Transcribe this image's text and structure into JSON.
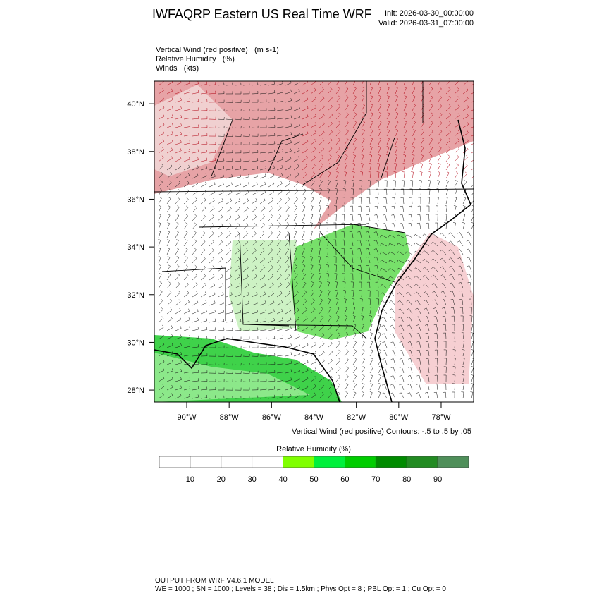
{
  "title": "IWFAQRP Eastern US Real Time WRF",
  "init": "Init: 2026-03-30_00:00:00",
  "valid": "Valid: 2026-03-31_07:00:00",
  "fields": [
    "Vertical Wind (red positive)   (m s-1)",
    "Relative Humidity   (%)",
    "Winds   (kts)"
  ],
  "map": {
    "xlim": [
      -91.53,
      -76.47
    ],
    "ylim": [
      27.5,
      40.95
    ],
    "xticks": [
      {
        "value": -90,
        "label": "90°W"
      },
      {
        "value": -88,
        "label": "88°W"
      },
      {
        "value": -86,
        "label": "86°W"
      },
      {
        "value": -84,
        "label": "84°W"
      },
      {
        "value": -82,
        "label": "82°W"
      },
      {
        "value": -80,
        "label": "80°W"
      },
      {
        "value": -78,
        "label": "78°W"
      }
    ],
    "yticks": [
      {
        "value": 28,
        "label": "28°N"
      },
      {
        "value": 30,
        "label": "30°N"
      },
      {
        "value": 32,
        "label": "32°N"
      },
      {
        "value": 34,
        "label": "34°N"
      },
      {
        "value": 36,
        "label": "36°N"
      },
      {
        "value": 38,
        "label": "38°N"
      },
      {
        "value": 40,
        "label": "40°N"
      }
    ]
  },
  "contour_note": "Vertical Wind (red positive) Contours: -.5 to .5 by .05",
  "colorbar": {
    "title": "Relative Humidity  (%)",
    "levels": [
      10,
      20,
      30,
      40,
      50,
      60,
      70,
      80,
      90
    ],
    "colors": [
      "#ffffff",
      "#ffffff",
      "#ffffff",
      "#ffffff",
      "#80ff00",
      "#00f03c",
      "#00cd00",
      "#008b00",
      "#228b22",
      "#4f8f5a"
    ]
  },
  "footer": [
    "OUTPUT FROM WRF V4.6.1 MODEL",
    "WE = 1000 ; SN = 1000 ; Levels = 38 ; Dis = 1.5km ; Phys Opt = 8 ; PBL Opt = 1 ; Cu Opt = 0"
  ]
}
